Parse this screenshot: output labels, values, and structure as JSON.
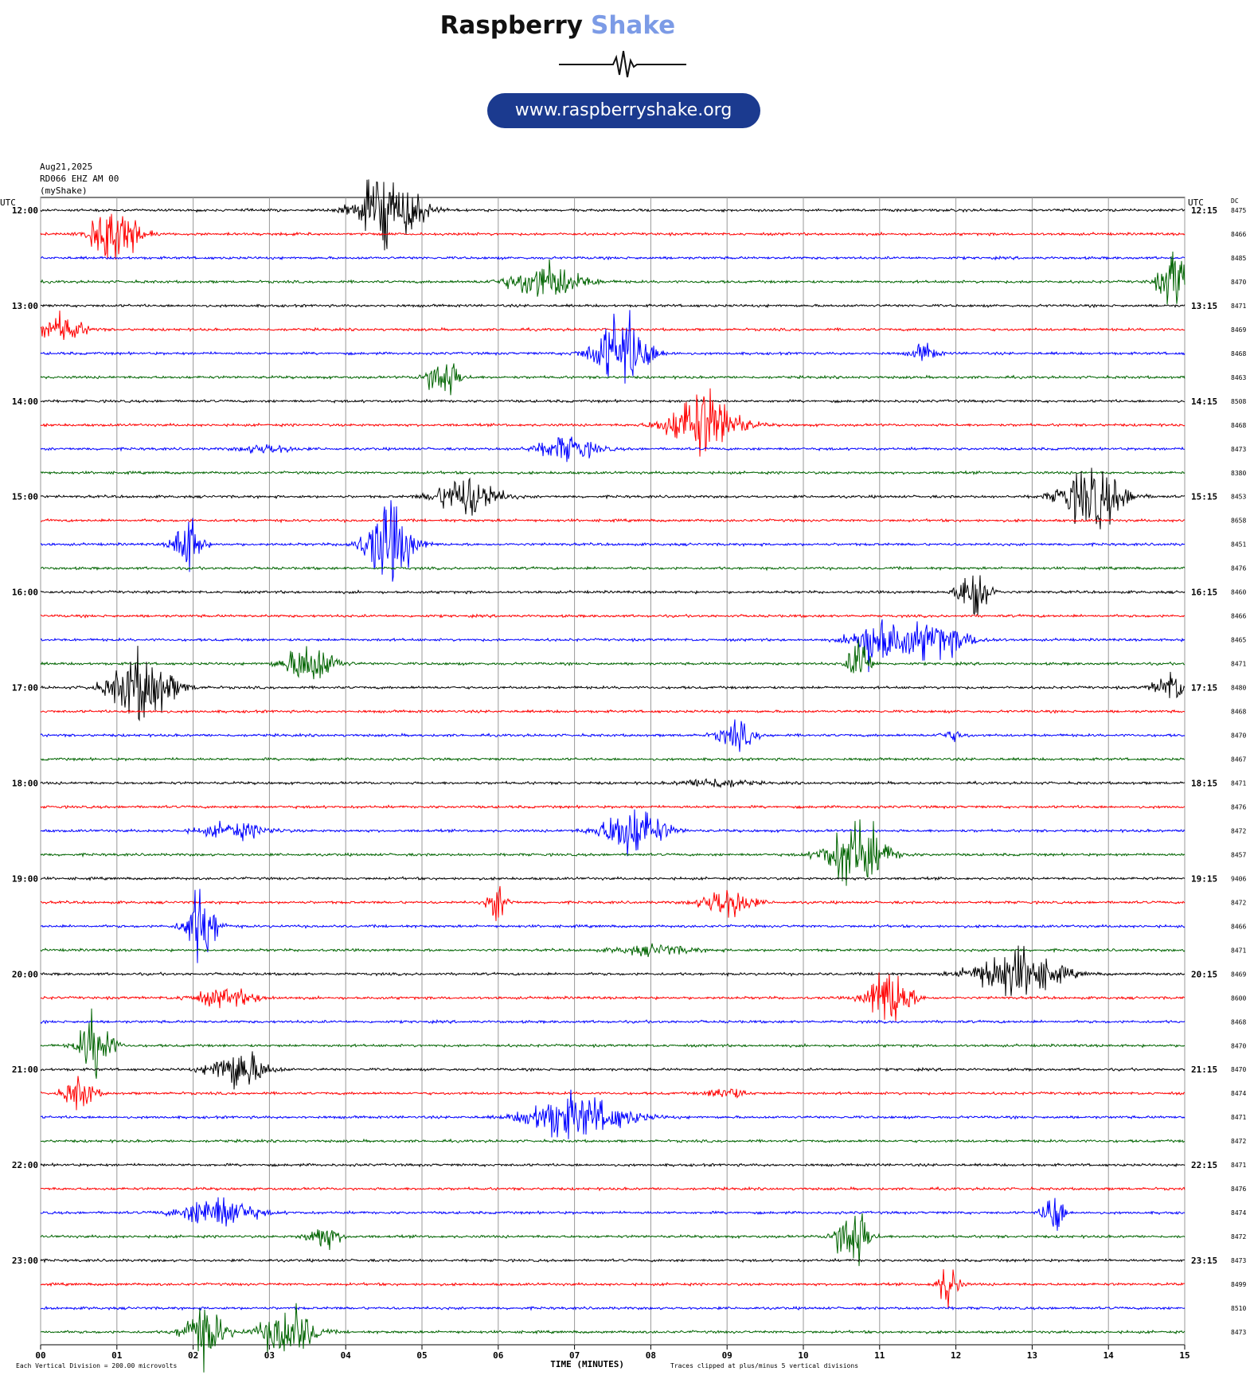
{
  "chart_data": {
    "type": "helicorder",
    "title": "Raspberry",
    "title_accent": "Shake",
    "url": "www.raspberryshake.org",
    "date": "Aug21,2025",
    "station": "RD066 EHZ AM 00",
    "source": "(myShake)",
    "utc_label": "UTC",
    "dc_label": "DC",
    "left_labels": [
      "12:00",
      "13:00",
      "14:00",
      "15:00",
      "16:00",
      "17:00",
      "18:00",
      "19:00",
      "20:00",
      "21:00",
      "22:00",
      "23:00"
    ],
    "right_labels": [
      "12:15",
      "13:15",
      "14:15",
      "15:15",
      "16:15",
      "17:15",
      "18:15",
      "19:15",
      "20:15",
      "21:15",
      "22:15",
      "23:15"
    ],
    "dc_values": [
      8475,
      8466,
      8485,
      8470,
      8471,
      8469,
      8468,
      8463,
      8508,
      8468,
      8473,
      8380,
      8453,
      8658,
      8451,
      8476,
      8460,
      8466,
      8465,
      8471,
      8480,
      8468,
      8470,
      8467,
      8471,
      8476,
      8472,
      8457,
      9406,
      8472,
      8466,
      8471,
      8469,
      8600,
      8468,
      8470,
      8470,
      8474,
      8471,
      8472,
      8471,
      8476,
      8474,
      8472,
      8473,
      8499,
      8510,
      8473
    ],
    "colors": [
      "#000000",
      "#ff0000",
      "#0000ff",
      "#006400"
    ],
    "xlim": [
      0,
      15
    ],
    "xticks": [
      {
        "value": 0,
        "label": "00"
      },
      {
        "value": 1,
        "label": "01"
      },
      {
        "value": 2,
        "label": "02"
      },
      {
        "value": 3,
        "label": "03"
      },
      {
        "value": 4,
        "label": "04"
      },
      {
        "value": 5,
        "label": "05"
      },
      {
        "value": 6,
        "label": "06"
      },
      {
        "value": 7,
        "label": "07"
      },
      {
        "value": 8,
        "label": "08"
      },
      {
        "value": 9,
        "label": "09"
      },
      {
        "value": 10,
        "label": "10"
      },
      {
        "value": 11,
        "label": "11"
      },
      {
        "value": 12,
        "label": "12"
      },
      {
        "value": 13,
        "label": "13"
      },
      {
        "value": 14,
        "label": "14"
      },
      {
        "value": 15,
        "label": "15"
      }
    ],
    "xlabel": "TIME (MINUTES)",
    "division_note": "Each Vertical Division =  200.00 microvolts",
    "clip_note": "Traces clipped at plus/minus 5 vertical divisions",
    "grid": true
  }
}
